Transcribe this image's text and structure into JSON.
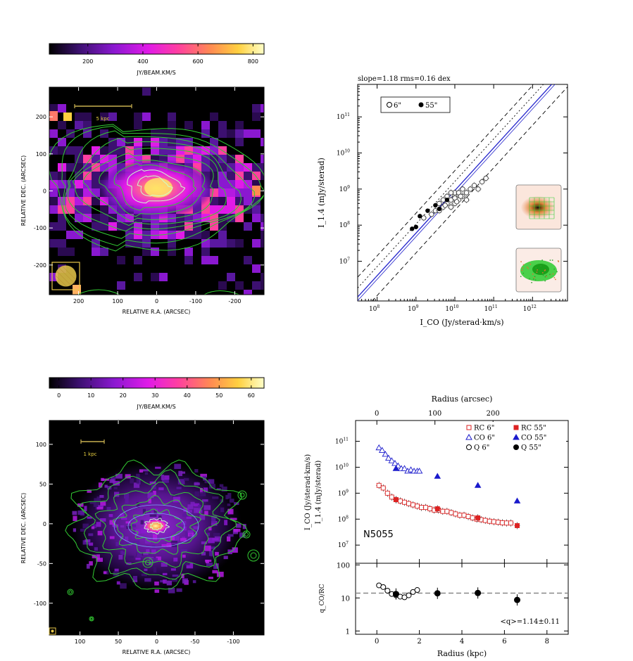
{
  "colors": {
    "contour_green": "#33cc33",
    "fit_blue": "#2222cc",
    "rc_red": "#dd2222",
    "co_blue": "#1a1acc",
    "beam_yellow": "#e8c84a"
  },
  "chart_data": [
    {
      "id": "panel-a",
      "type": "heatmap",
      "colorbar": {
        "ticks": [
          200,
          400,
          600,
          800
        ],
        "label": "JY/BEAM.KM/S",
        "range": [
          60,
          840
        ]
      },
      "xlabel": "RELATIVE R.A.  (ARCSEC)",
      "ylabel": "RELATIVE DEC.  (ARCSEC)",
      "xlim": [
        275,
        -275
      ],
      "ylim": [
        -280,
        280
      ],
      "xticks": [
        200,
        100,
        0,
        -100,
        -200
      ],
      "yticks": [
        200,
        100,
        0,
        -100,
        -200
      ],
      "xtick_labels": [
        "200",
        "100",
        "0",
        "-100",
        "-200"
      ],
      "ytick_labels": [
        "200",
        "100",
        "0",
        "-100",
        "-200"
      ],
      "scalebar": {
        "label": "5 kpc",
        "from": 210,
        "to": 65,
        "y": 210
      },
      "beam_diameter_arcsec": 55
    },
    {
      "id": "panel-b",
      "type": "scatter",
      "title": "slope=1.18  rms=0.16 dex",
      "xlabel": "I_CO  (Jy/sterad·km/s)",
      "ylabel": "I_1.4  (mJy/sterad)",
      "xlim_log10": [
        7.5,
        12.9
      ],
      "ylim_log10": [
        5.9,
        11.9
      ],
      "xticks_log10": [
        8,
        9,
        10,
        11,
        12
      ],
      "yticks_log10": [
        7,
        8,
        9,
        10,
        11
      ],
      "fit": {
        "slope": 1.18,
        "intercept": -2.84
      },
      "legend": [
        {
          "name": "6\"",
          "marker": "open-circle"
        },
        {
          "name": "55\"",
          "marker": "filled-circle"
        }
      ],
      "series": [
        {
          "name": "6\"",
          "points": [
            [
              9.2,
              8.2
            ],
            [
              9.4,
              8.3
            ],
            [
              9.5,
              8.4
            ],
            [
              9.6,
              8.4
            ],
            [
              9.6,
              8.6
            ],
            [
              9.7,
              8.5
            ],
            [
              9.7,
              8.7
            ],
            [
              9.8,
              8.6
            ],
            [
              9.8,
              8.8
            ],
            [
              9.9,
              8.7
            ],
            [
              9.9,
              8.5
            ],
            [
              10.0,
              8.8
            ],
            [
              10.0,
              8.6
            ],
            [
              10.0,
              8.9
            ],
            [
              10.1,
              8.7
            ],
            [
              10.1,
              8.9
            ],
            [
              10.2,
              8.8
            ],
            [
              10.2,
              9.0
            ],
            [
              10.3,
              8.9
            ],
            [
              10.3,
              8.7
            ],
            [
              10.4,
              9.0
            ],
            [
              10.5,
              9.1
            ],
            [
              10.6,
              9.0
            ],
            [
              10.7,
              9.2
            ],
            [
              10.8,
              9.3
            ],
            [
              9.9,
              8.9
            ],
            [
              10.0,
              8.75
            ],
            [
              9.75,
              8.55
            ],
            [
              10.15,
              8.8
            ],
            [
              10.05,
              8.65
            ]
          ]
        },
        {
          "name": "55\"",
          "points": [
            [
              8.9,
              7.9
            ],
            [
              9.0,
              7.95
            ],
            [
              9.1,
              8.25
            ],
            [
              9.3,
              8.4
            ],
            [
              9.5,
              8.55
            ],
            [
              9.6,
              8.45
            ],
            [
              9.8,
              8.7
            ]
          ]
        }
      ],
      "insets": [
        "rc-map-inset",
        "co-map-inset"
      ]
    },
    {
      "id": "panel-c",
      "type": "heatmap",
      "colorbar": {
        "ticks": [
          0,
          10,
          20,
          30,
          40,
          50,
          60
        ],
        "label": "JY/BEAM.KM/S",
        "range": [
          -3,
          64
        ]
      },
      "xlabel": "RELATIVE R.A.  (ARCSEC)",
      "ylabel": "RELATIVE DEC.  (ARCSEC)",
      "xlim": [
        140,
        -140
      ],
      "ylim": [
        -140,
        130
      ],
      "xticks": [
        100,
        50,
        0,
        -50,
        -100
      ],
      "yticks": [
        100,
        50,
        0,
        -50,
        -100
      ],
      "xtick_labels": [
        "100",
        "50",
        "0",
        "-50",
        "-100"
      ],
      "ytick_labels": [
        "100",
        "50",
        "0",
        "-50",
        "-100"
      ],
      "scalebar": {
        "label": "1 kpc",
        "from": 103,
        "to": 70,
        "y": 110
      },
      "beam_diameter_arcsec": 6
    },
    {
      "id": "panel-d",
      "type": "scatter",
      "label": "N5055",
      "top_xlabel": "Radius (arcsec)",
      "top_xticks": [
        0,
        100,
        200
      ],
      "ylabel_line1": "I_CO (Jy/sterad·km/s)",
      "ylabel_line2": "I_1.4 (mJy/sterad)",
      "xlim": [
        -1,
        9
      ],
      "ylim_log10": [
        6.3,
        11.8
      ],
      "yticks_log10": [
        7,
        8,
        9,
        10,
        11
      ],
      "legend": [
        "RC 6\"",
        "RC 55\"",
        "CO 6\"",
        "CO 55\"",
        "Q 6\"",
        "Q 55\""
      ],
      "series": [
        {
          "name": "CO 6\"",
          "marker": "open-triangle",
          "points": [
            [
              0.1,
              10.75
            ],
            [
              0.25,
              10.65
            ],
            [
              0.4,
              10.5
            ],
            [
              0.55,
              10.35
            ],
            [
              0.7,
              10.25
            ],
            [
              0.85,
              10.15
            ],
            [
              1.0,
              10.05
            ],
            [
              1.15,
              9.95
            ],
            [
              1.3,
              9.95
            ],
            [
              1.45,
              9.85
            ],
            [
              1.6,
              9.9
            ],
            [
              1.75,
              9.85
            ],
            [
              1.9,
              9.85
            ],
            [
              2.0,
              9.85
            ]
          ]
        },
        {
          "name": "CO 55\"",
          "marker": "filled-triangle",
          "points": [
            [
              0.9,
              9.95
            ],
            [
              2.85,
              9.65
            ],
            [
              4.75,
              9.3
            ],
            [
              6.6,
              8.7
            ]
          ]
        },
        {
          "name": "RC 6\"",
          "marker": "open-square",
          "points": [
            [
              0.1,
              9.3
            ],
            [
              0.3,
              9.2
            ],
            [
              0.5,
              9.0
            ],
            [
              0.7,
              8.85
            ],
            [
              0.9,
              8.75
            ],
            [
              1.1,
              8.7
            ],
            [
              1.3,
              8.65
            ],
            [
              1.5,
              8.6
            ],
            [
              1.7,
              8.55
            ],
            [
              1.9,
              8.5
            ],
            [
              2.1,
              8.45
            ],
            [
              2.3,
              8.45
            ],
            [
              2.5,
              8.4
            ],
            [
              2.7,
              8.35
            ],
            [
              2.9,
              8.35
            ],
            [
              3.1,
              8.3
            ],
            [
              3.3,
              8.3
            ],
            [
              3.5,
              8.25
            ],
            [
              3.7,
              8.2
            ],
            [
              3.9,
              8.15
            ],
            [
              4.1,
              8.15
            ],
            [
              4.3,
              8.1
            ],
            [
              4.5,
              8.05
            ],
            [
              4.7,
              8.0
            ],
            [
              4.9,
              7.98
            ],
            [
              5.1,
              7.95
            ],
            [
              5.3,
              7.92
            ],
            [
              5.5,
              7.9
            ],
            [
              5.7,
              7.88
            ],
            [
              5.9,
              7.86
            ],
            [
              6.1,
              7.85
            ],
            [
              6.3,
              7.85
            ]
          ]
        },
        {
          "name": "RC 55\"",
          "marker": "filled-square",
          "points": [
            [
              0.9,
              8.75
            ],
            [
              2.85,
              8.4
            ],
            [
              4.75,
              8.05
            ],
            [
              6.6,
              7.75
            ]
          ]
        }
      ]
    },
    {
      "id": "panel-e",
      "type": "scatter",
      "xlabel": "Radius (kpc)",
      "ylabel": "q_CO/RC",
      "xlim": [
        -1,
        9
      ],
      "ylim_log10": [
        -0.1,
        2.05
      ],
      "xticks": [
        0,
        2,
        4,
        6,
        8
      ],
      "yticks": [
        1,
        10,
        100
      ],
      "ytick_labels": [
        "1",
        "10",
        "100"
      ],
      "mean_q": 14,
      "annotation": "<q>=1.14±0.11",
      "series": [
        {
          "name": "Q 6\"",
          "marker": "open-circle",
          "points": [
            [
              0.1,
              1.38
            ],
            [
              0.3,
              1.33
            ],
            [
              0.5,
              1.22
            ],
            [
              0.7,
              1.12
            ],
            [
              0.9,
              1.08
            ],
            [
              1.1,
              1.04
            ],
            [
              1.3,
              1.02
            ],
            [
              1.5,
              1.08
            ],
            [
              1.7,
              1.18
            ],
            [
              1.9,
              1.24
            ]
          ]
        },
        {
          "name": "Q 55\"",
          "marker": "filled-circle",
          "points": [
            [
              0.9,
              1.12
            ],
            [
              2.85,
              1.14
            ],
            [
              4.75,
              1.15
            ],
            [
              6.6,
              0.94
            ]
          ]
        }
      ]
    }
  ]
}
